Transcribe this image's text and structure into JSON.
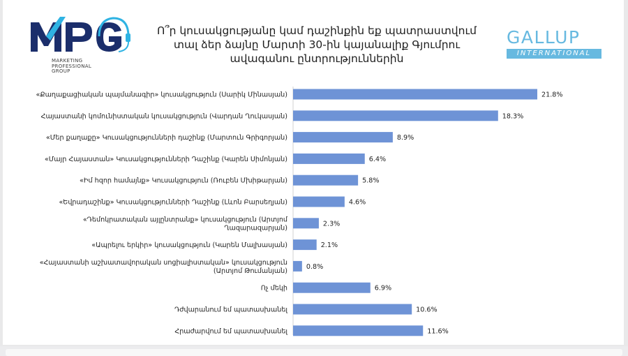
{
  "title": "Ո՞ր կուսակցությանը կամ դաշինքին եք պատրաստվում տալ ձեր ձայնը Մարտի 30-ին կայանալիք Գյումրու ավագանու ընտրություններին",
  "logos": {
    "left": {
      "mark": "MPG",
      "subtitle": "MARKETING PROFESSIONAL GROUP"
    },
    "right": {
      "word": "GALLUP",
      "tag": "INTERNATIONAL"
    }
  },
  "colors": {
    "bar": "#6e93d6",
    "mpg_dark": "#1b2e6b",
    "mpg_cyan": "#2fb3e3",
    "gallup": "#67b9e0"
  },
  "chart_data": {
    "type": "bar",
    "orientation": "horizontal",
    "title": "Ո՞ր կուսակցությանը կամ դաշինքին եք պատրաստվում տալ ձեր ձայնը Մարտի 30-ին կայանալիք Գյումրու ավագանու ընտրություններին",
    "categories": [
      "«Քաղաքացիական պայմանագիր» կուսակցություն (Սարիկ Մինասյան)",
      "Հայաստանի կոմունիստական կուսակցություն (Վարդան Ղուկասյան)",
      "«Մեր քաղաքը» Կուսակցությունների դաշինք (Մարտուն Գրիգորյան)",
      "«Մայր Հայաստան» Կուսակցությունների Դաշինք (Կարեն Սիմոնյան)",
      "«Իմ հզոր համայնք» Կուսակցություն (Ռուբեն Մխիթարյան)",
      "«Եվրադաշինք» Կուսակցությունների Դաշինք (Լևոն Բարսեղյան)",
      "«Դեմոկրատական այլընտրանք» կուսակցություն (Արտյոմ Ղազարազարյան)",
      "«Ապրելու երկիր» կուսակցություն (Կարեն Մալխասյան)",
      "«Հայաստանի աշխատավորական սոցիալիստական» կուսակցություն (Արտյոմ Թումանյան)",
      "Ոչ մեկի",
      "Դժվարանում եմ պատասխանել",
      "Հրաժարվում եմ պատասխանել"
    ],
    "category_lines": [
      [
        "«Քաղաքացիական պայմանագիր» կուսակցություն (Սարիկ Մինասյան)"
      ],
      [
        "Հայաստանի կոմունիստական կուսակցություն (Վարդան Ղուկասյան)"
      ],
      [
        "«Մեր քաղաքը» Կուսակցությունների դաշինք (Մարտուն Գրիգորյան)"
      ],
      [
        "«Մայր Հայաստան» Կուսակցությունների Դաշինք  (Կարեն Սիմոնյան)"
      ],
      [
        "«Իմ հզոր համայնք» Կուսակցություն (Ռուբեն Մխիթարյան)"
      ],
      [
        "«Եվրադաշինք» Կուսակցությունների Դաշինք (Լևոն Բարսեղյան)"
      ],
      [
        "«Դեմոկրատական այլընտրանք» կուսակցություն (Արտյոմ",
        "Ղազարազարյան)"
      ],
      [
        "«Ապրելու երկիր» կուսակցություն (Կարեն Մալխասյան)"
      ],
      [
        "«Հայաստանի աշխատավորական սոցիալիստական» կուսակցություն",
        "(Արտյոմ Թումանյան)"
      ],
      [
        "Ոչ մեկի"
      ],
      [
        "Դժվարանում եմ պատասխանել"
      ],
      [
        "Հրաժարվում եմ պատասխանել"
      ]
    ],
    "values": [
      21.8,
      18.3,
      8.9,
      6.4,
      5.8,
      4.6,
      2.3,
      2.1,
      0.8,
      6.9,
      10.6,
      11.6
    ],
    "value_labels": [
      "21.8%",
      "18.3%",
      "8.9%",
      "6.4%",
      "5.8%",
      "4.6%",
      "2.3%",
      "2.1%",
      "0.8%",
      "6.9%",
      "10.6%",
      "11.6%"
    ],
    "xlim": [
      0,
      25
    ],
    "grid": false,
    "legend": "none"
  }
}
